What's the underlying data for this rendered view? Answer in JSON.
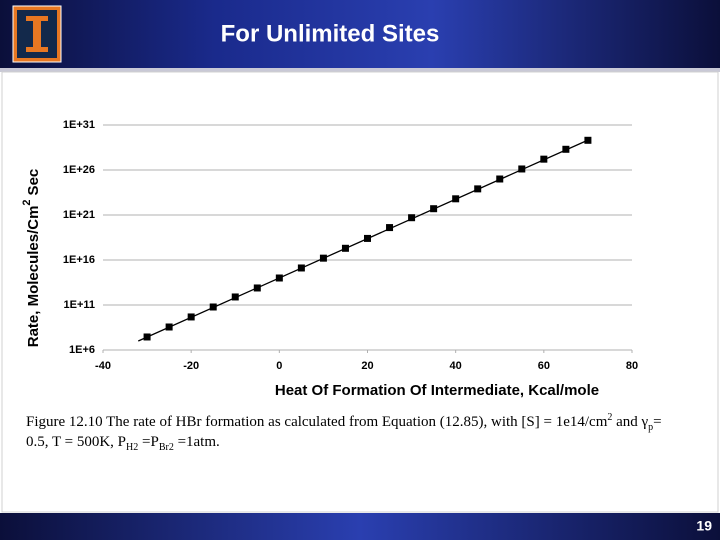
{
  "header": {
    "title": "For Unlimited Sites"
  },
  "chart_data": {
    "type": "scatter",
    "x_label": "Heat Of Formation Of Intermediate, Kcal/mole",
    "y_label": {
      "before": "Rate, Molecules/Cm",
      "sup": "2",
      "after": "Sec"
    },
    "x": [
      -30,
      -25,
      -20,
      -15,
      -10,
      -5,
      0,
      5,
      10,
      15,
      20,
      25,
      30,
      35,
      40,
      45,
      50,
      55,
      60,
      65,
      70
    ],
    "values": [
      28000000.0,
      360000000.0,
      4700000000.0,
      60000000000.0,
      780000000000.0,
      7800000000000.0,
      100000000000000.0,
      1300000000000000.0,
      1.6e+16,
      2e+17,
      2.5e+18,
      4e+19,
      5e+20,
      5e+21,
      6.3e+22,
      8e+23,
      1e+25,
      1.3e+26,
      1.6e+27,
      2e+28,
      2e+29
    ],
    "color": "#000000",
    "trendline": {
      "x": [
        -32,
        70
      ],
      "values": [
        10000000.0,
        2.1e+29
      ],
      "color": "#000000"
    },
    "xlim": [
      -40,
      80
    ],
    "xticks": [
      -40,
      -20,
      0,
      20,
      40,
      60,
      80
    ],
    "ylim": [
      1000000.0,
      1e+31
    ],
    "log_y": true,
    "grid": true,
    "yticks": [
      {
        "value": 1000000.0,
        "label": "1E+6"
      },
      {
        "value": 100000000000.0,
        "label": "1E+11"
      },
      {
        "value": 1e+16,
        "label": "1E+16"
      },
      {
        "value": 1e+21,
        "label": "1E+21"
      },
      {
        "value": 1e+26,
        "label": "1E+26"
      },
      {
        "value": 1e+31,
        "label": "1E+31"
      }
    ]
  },
  "caption": {
    "segments": [
      {
        "text": "Figure 12.10  The rate of HBr formation as calculated from Equation (12.85), with [S] = 1e14/cm",
        "style": "normal"
      },
      {
        "text": "2",
        "style": "sup"
      },
      {
        "text": " and γ",
        "style": "normal"
      },
      {
        "text": "p",
        "style": "sub"
      },
      {
        "text": "= 0.5, T = 500K,  P",
        "style": "normal"
      },
      {
        "text": "H2",
        "style": "sub"
      },
      {
        "text": " =P",
        "style": "normal"
      },
      {
        "text": "Br2",
        "style": "sub"
      },
      {
        "text": " =1atm.",
        "style": "normal"
      }
    ]
  },
  "footer": {
    "page": "19"
  }
}
